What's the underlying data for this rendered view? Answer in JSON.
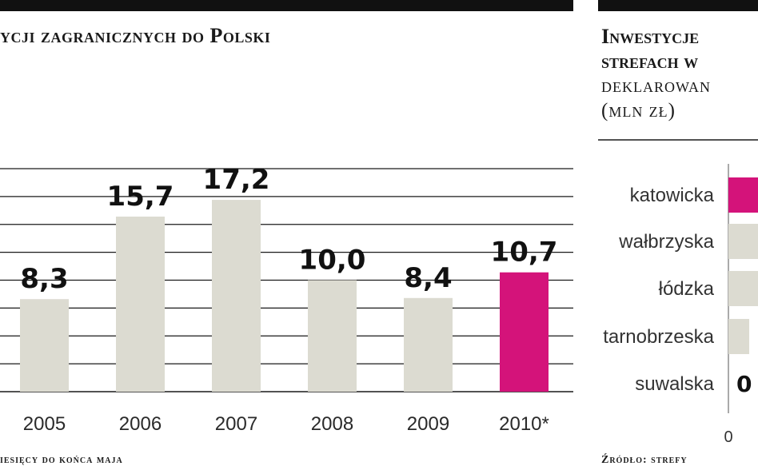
{
  "left_panel": {
    "title": "ycji zagranicznych do Polski",
    "footnote": "iesięcy do końca maja"
  },
  "right_panel": {
    "title_lines": [
      "Inwestycje",
      "strefach w",
      "deklarowan",
      "(mln zł)"
    ],
    "footnote": "Źródło: strefy"
  },
  "chart_data": [
    {
      "type": "bar",
      "categories": [
        "2005",
        "2006",
        "2007",
        "2008",
        "2009",
        "2010*"
      ],
      "values": [
        8.3,
        15.7,
        17.2,
        10.0,
        8.4,
        10.7
      ],
      "value_labels": [
        "8,3",
        "15,7",
        "17,2",
        "10,0",
        "8,4",
        "10,7"
      ],
      "highlight_index": 5,
      "colors": {
        "bar": "#dcdbd1",
        "highlight": "#d4137a",
        "grid": "#1a1a1a"
      },
      "grid": true,
      "ylim": [
        0,
        20
      ]
    },
    {
      "type": "bar",
      "orientation": "horizontal",
      "categories": [
        "katowicka",
        "wałbrzyska",
        "łódzka",
        "tarnobrzeska",
        "suwalska"
      ],
      "visible_value_labels": {
        "suwalska": "0"
      },
      "highlight_index": 0,
      "colors": {
        "bar": "#dcdbd1",
        "highlight": "#d4137a"
      },
      "x_tick_labels": [
        "0"
      ]
    }
  ]
}
